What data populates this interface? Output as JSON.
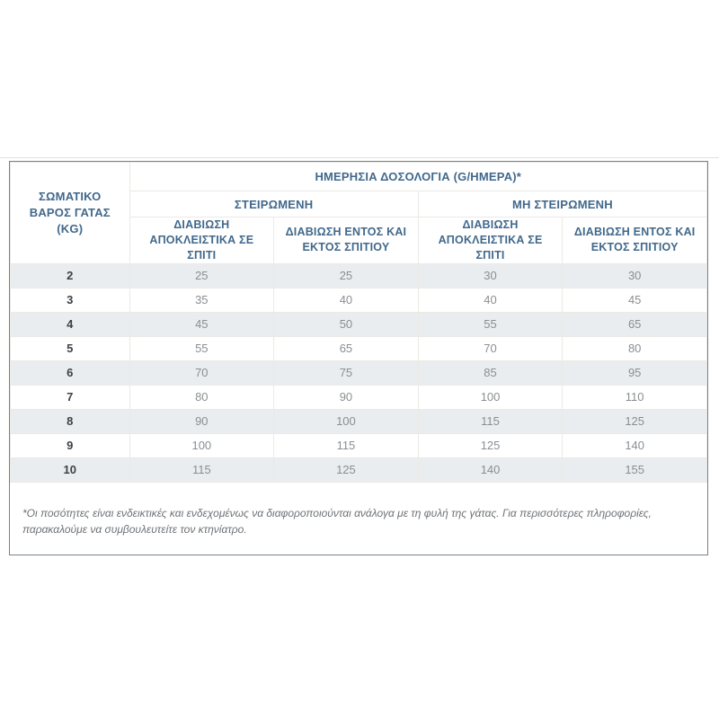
{
  "colors": {
    "header_text": "#41688b",
    "row_shade": "#e9edf0",
    "outer_border": "#75828a",
    "inner_border": "#ece9e4",
    "value_text": "#8b8e91",
    "weight_text": "#3d4145",
    "footnote_text": "#6e7276"
  },
  "table": {
    "title": "ΗΜΕΡΗΣΙΑ ΔΟΣΟΛΟΓΙΑ (G/ΗΜΕΡΑ)*",
    "weight_header": "ΣΩΜΑΤΙΚΟ ΒΑΡΟΣ ΓΑΤΑΣ (KG)",
    "groups": [
      {
        "label": "ΣΤΕΙΡΩΜΕΝΗ"
      },
      {
        "label": "ΜΗ ΣΤΕΙΡΩΜΕΝΗ"
      }
    ],
    "subheaders": [
      "ΔΙΑΒΙΩΣΗ ΑΠΟΚΛΕΙΣΤΙΚΑ ΣΕ ΣΠΙΤΙ",
      "ΔΙΑΒΙΩΣΗ ΕΝΤΟΣ ΚΑΙ ΕΚΤΟΣ ΣΠΙΤΙΟΥ",
      "ΔΙΑΒΙΩΣΗ ΑΠΟΚΛΕΙΣΤΙΚΑ ΣΕ ΣΠΙΤΙ",
      "ΔΙΑΒΙΩΣΗ ΕΝΤΟΣ ΚΑΙ ΕΚΤΟΣ ΣΠΙΤΙΟΥ"
    ],
    "rows": [
      {
        "kg": "2",
        "values": [
          "25",
          "25",
          "30",
          "30"
        ]
      },
      {
        "kg": "3",
        "values": [
          "35",
          "40",
          "40",
          "45"
        ]
      },
      {
        "kg": "4",
        "values": [
          "45",
          "50",
          "55",
          "65"
        ]
      },
      {
        "kg": "5",
        "values": [
          "55",
          "65",
          "70",
          "80"
        ]
      },
      {
        "kg": "6",
        "values": [
          "70",
          "75",
          "85",
          "95"
        ]
      },
      {
        "kg": "7",
        "values": [
          "80",
          "90",
          "100",
          "110"
        ]
      },
      {
        "kg": "8",
        "values": [
          "90",
          "100",
          "115",
          "125"
        ]
      },
      {
        "kg": "9",
        "values": [
          "100",
          "115",
          "125",
          "140"
        ]
      },
      {
        "kg": "10",
        "values": [
          "115",
          "125",
          "140",
          "155"
        ]
      }
    ]
  },
  "footnote": "*Οι ποσότητες είναι ενδεικτικές και ενδεχομένως να διαφοροποιούνται ανάλογα με τη φυλή της γάτας. Για περισσότερες πληροφορίες, παρακαλούμε να συμβουλευτείτε τον κτηνίατρο."
}
